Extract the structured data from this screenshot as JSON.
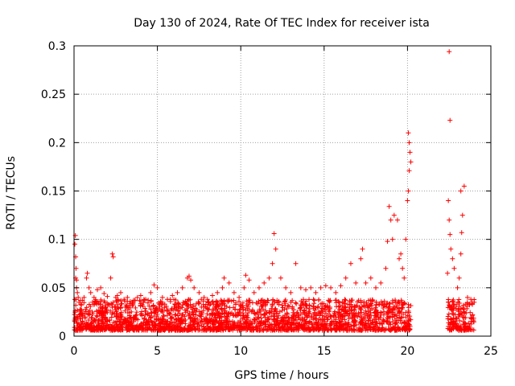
{
  "chart_data": {
    "type": "scatter",
    "title": "Day 130 of 2024, Rate Of TEC Index for receiver ista",
    "xlabel": "GPS time / hours",
    "ylabel": "ROTI / TECUs",
    "xlim": [
      0,
      25
    ],
    "ylim": [
      0,
      0.3
    ],
    "xticks": [
      0,
      5,
      10,
      15,
      20,
      25
    ],
    "xtick_labels": [
      "0",
      "5",
      "10",
      "15",
      "20",
      "25"
    ],
    "yticks": [
      0,
      0.05,
      0.1,
      0.15,
      0.2,
      0.25,
      0.3
    ],
    "ytick_labels": [
      "0",
      "0.05",
      "0.1",
      "0.15",
      "0.2",
      "0.25",
      "0.3"
    ],
    "grid": true,
    "marker": "+",
    "color": "#ff0000",
    "series": [
      {
        "name": "ROTI",
        "x": [
          0.05,
          0.08,
          0.1,
          0.12,
          0.15,
          0.2,
          0.25,
          0.3,
          0.4,
          0.5,
          0.6,
          0.75,
          0.8,
          0.9,
          1.0,
          1.2,
          1.4,
          1.6,
          1.8,
          2.0,
          2.2,
          2.3,
          2.35,
          2.5,
          2.6,
          2.8,
          3.0,
          3.2,
          3.5,
          3.8,
          4.0,
          4.3,
          4.6,
          4.8,
          5.0,
          5.3,
          5.6,
          5.9,
          6.2,
          6.5,
          6.8,
          6.9,
          7.0,
          7.2,
          7.5,
          7.8,
          8.0,
          8.3,
          8.6,
          8.9,
          9.0,
          9.3,
          9.6,
          9.9,
          10.2,
          10.3,
          10.5,
          10.8,
          11.1,
          11.4,
          11.7,
          11.9,
          12.0,
          12.1,
          12.4,
          12.7,
          13.0,
          13.3,
          13.6,
          13.9,
          14.2,
          14.5,
          14.8,
          15.1,
          15.4,
          15.7,
          16.0,
          16.3,
          16.6,
          16.9,
          17.2,
          17.3,
          17.5,
          17.8,
          18.1,
          18.4,
          18.7,
          18.8,
          18.9,
          19.0,
          19.1,
          19.2,
          19.4,
          19.5,
          19.6,
          19.7,
          19.8,
          19.9,
          20.0,
          20.05,
          20.1,
          20.15,
          20.2,
          22.4,
          22.45,
          22.5,
          22.55,
          22.6,
          22.7,
          22.8,
          23.0,
          23.1,
          23.2,
          23.3,
          23.4,
          23.6,
          23.8,
          24.0,
          0.1,
          0.15,
          22.55,
          22.5,
          20.1,
          20.05,
          23.2,
          23.25
        ],
        "y": [
          0.095,
          0.104,
          0.082,
          0.07,
          0.058,
          0.045,
          0.04,
          0.035,
          0.033,
          0.037,
          0.04,
          0.06,
          0.065,
          0.05,
          0.045,
          0.04,
          0.048,
          0.05,
          0.044,
          0.041,
          0.06,
          0.085,
          0.082,
          0.04,
          0.042,
          0.045,
          0.038,
          0.04,
          0.035,
          0.04,
          0.042,
          0.038,
          0.045,
          0.053,
          0.05,
          0.04,
          0.038,
          0.042,
          0.045,
          0.05,
          0.06,
          0.062,
          0.058,
          0.05,
          0.045,
          0.04,
          0.038,
          0.042,
          0.045,
          0.05,
          0.06,
          0.055,
          0.045,
          0.04,
          0.05,
          0.063,
          0.058,
          0.045,
          0.05,
          0.055,
          0.06,
          0.075,
          0.106,
          0.09,
          0.06,
          0.05,
          0.045,
          0.075,
          0.05,
          0.048,
          0.05,
          0.045,
          0.05,
          0.052,
          0.05,
          0.045,
          0.052,
          0.06,
          0.075,
          0.055,
          0.08,
          0.09,
          0.055,
          0.06,
          0.05,
          0.055,
          0.07,
          0.098,
          0.134,
          0.12,
          0.1,
          0.125,
          0.12,
          0.08,
          0.085,
          0.07,
          0.06,
          0.1,
          0.14,
          0.21,
          0.2,
          0.19,
          0.18,
          0.065,
          0.14,
          0.12,
          0.105,
          0.09,
          0.08,
          0.07,
          0.05,
          0.06,
          0.085,
          0.125,
          0.155,
          0.04,
          0.038,
          0.035,
          0.06,
          0.05,
          0.223,
          0.294,
          0.171,
          0.15,
          0.15,
          0.107
        ],
        "baseline_ranges": [
          [
            0.0,
            20.2
          ],
          [
            22.4,
            24.0
          ]
        ]
      }
    ]
  }
}
